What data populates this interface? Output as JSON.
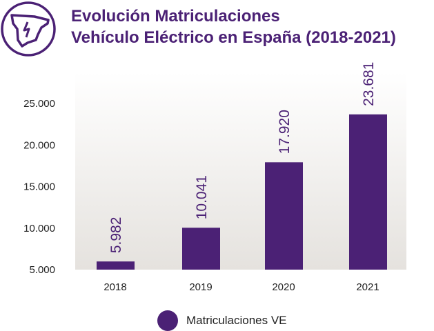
{
  "chart_data": {
    "type": "bar",
    "title": "Evolución Matriculaciones Vehículo Eléctrico en España (2018-2021)",
    "title_lines": [
      "Evolución Matriculaciones",
      "Vehículo Eléctrico en España (2018-2021)"
    ],
    "categories": [
      "2018",
      "2019",
      "2020",
      "2021"
    ],
    "series": [
      {
        "name": "Matriculaciones VE",
        "values": [
          5982,
          10041,
          17920,
          23681
        ],
        "color": "#4b2175"
      }
    ],
    "data_labels": [
      "5.982",
      "10.041",
      "17.920",
      "23.681"
    ],
    "yticks": [
      5000,
      10000,
      15000,
      20000,
      25000
    ],
    "ytick_labels": [
      "5.000",
      "10.000",
      "15.000",
      "20.000",
      "25.000"
    ],
    "ylim": [
      5000,
      28000
    ],
    "xlabel": "",
    "ylabel": "",
    "grid": false,
    "legend": "bottom",
    "logo_icon": "spain-map-lightning-icon"
  }
}
